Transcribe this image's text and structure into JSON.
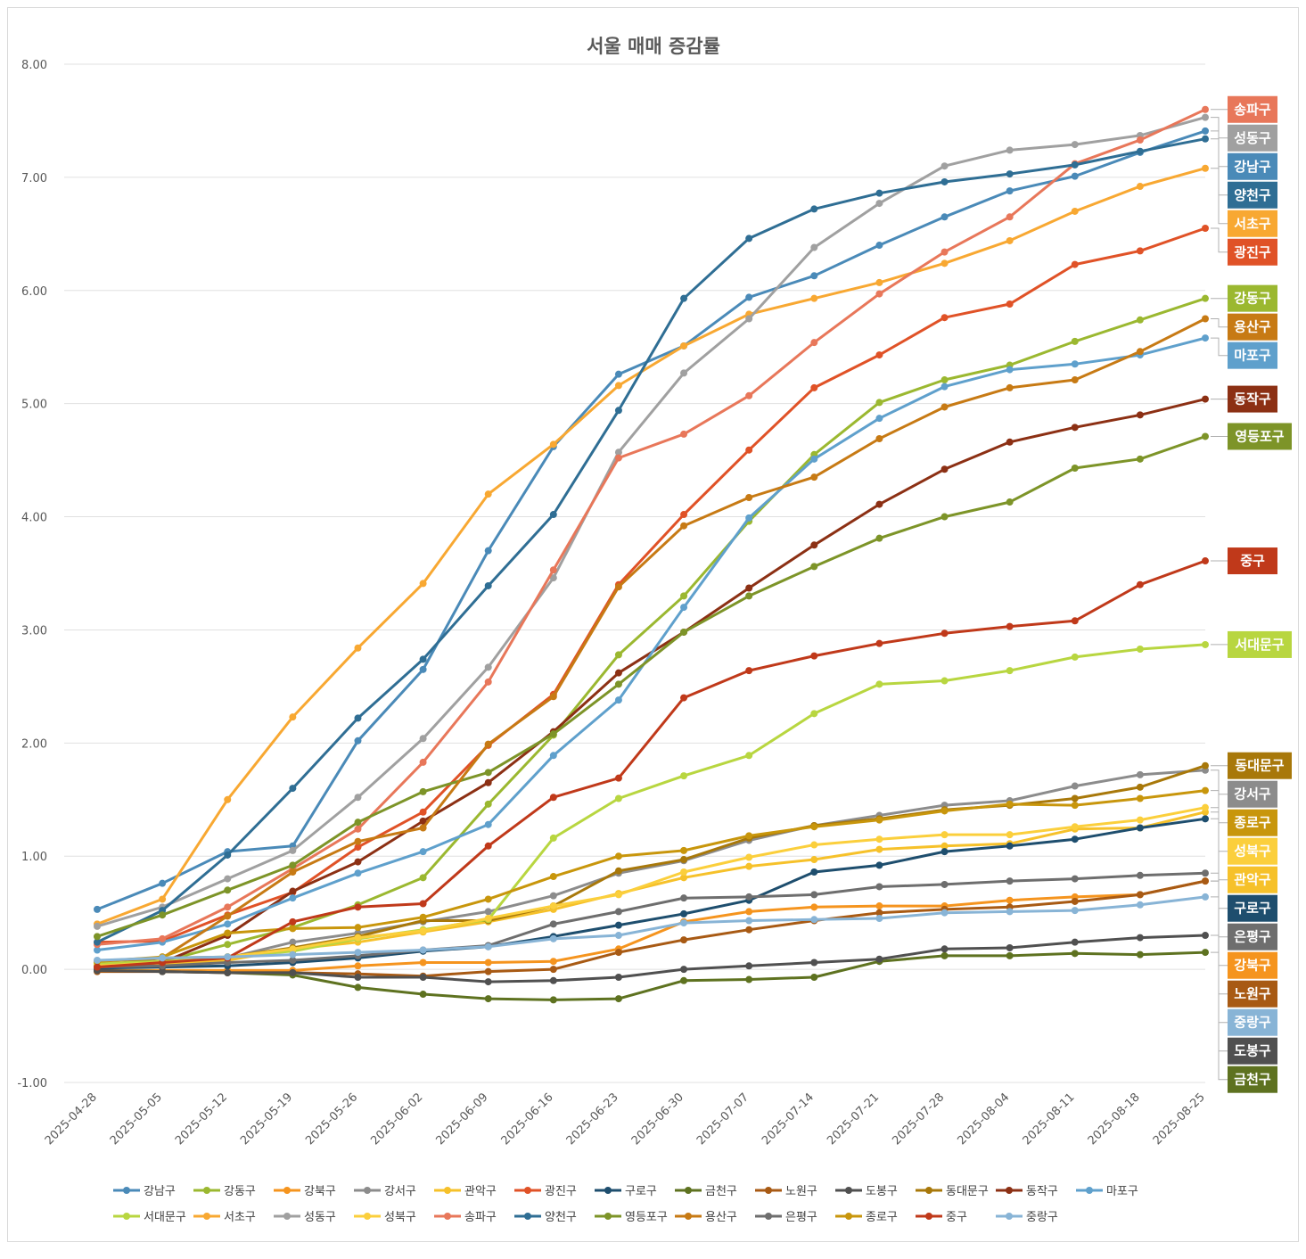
{
  "chart_data": {
    "type": "line",
    "title": "서울 매매 증감률",
    "xlabel": "",
    "ylabel": "",
    "ylim": [
      -1,
      8
    ],
    "ytick_labels": [
      "-1.00",
      "0.00",
      "1.00",
      "2.00",
      "3.00",
      "4.00",
      "5.00",
      "6.00",
      "7.00",
      "8.00"
    ],
    "grid": true,
    "legend_position": "bottom",
    "x": [
      "2025-04-28",
      "2025-05-05",
      "2025-05-12",
      "2025-05-19",
      "2025-05-26",
      "2025-06-02",
      "2025-06-09",
      "2025-06-16",
      "2025-06-23",
      "2025-06-30",
      "2025-07-07",
      "2025-07-14",
      "2025-07-21",
      "2025-07-28",
      "2025-08-04",
      "2025-08-11",
      "2025-08-18",
      "2025-08-25"
    ],
    "series": [
      {
        "name": "강남구",
        "color": "#4a8ab8",
        "values": [
          0.53,
          0.76,
          1.04,
          1.09,
          2.02,
          2.65,
          3.7,
          4.62,
          5.26,
          5.51,
          5.94,
          6.13,
          6.4,
          6.65,
          6.88,
          7.01,
          7.22,
          7.41
        ]
      },
      {
        "name": "강동구",
        "color": "#9bb830",
        "values": [
          0.03,
          0.07,
          0.22,
          0.37,
          0.57,
          0.81,
          1.46,
          2.07,
          2.78,
          3.3,
          3.96,
          4.55,
          5.01,
          5.21,
          5.34,
          5.55,
          5.74,
          5.93
        ]
      },
      {
        "name": "강북구",
        "color": "#f5941e",
        "values": [
          -0.01,
          -0.01,
          -0.01,
          -0.01,
          0.03,
          0.06,
          0.06,
          0.07,
          0.18,
          0.42,
          0.51,
          0.55,
          0.56,
          0.56,
          0.61,
          0.64,
          0.66,
          0.78
        ]
      },
      {
        "name": "강서구",
        "color": "#8c8c8c",
        "values": [
          0.02,
          0.05,
          0.1,
          0.24,
          0.32,
          0.42,
          0.51,
          0.65,
          0.85,
          0.96,
          1.14,
          1.27,
          1.36,
          1.45,
          1.49,
          1.62,
          1.72,
          1.76
        ]
      },
      {
        "name": "관악구",
        "color": "#f6c12a",
        "values": [
          0.02,
          0.05,
          0.08,
          0.18,
          0.24,
          0.33,
          0.42,
          0.53,
          0.67,
          0.81,
          0.91,
          0.97,
          1.06,
          1.09,
          1.11,
          1.24,
          1.25,
          1.39
        ]
      },
      {
        "name": "광진구",
        "color": "#e05227",
        "values": [
          0.24,
          0.25,
          0.48,
          0.68,
          1.08,
          1.39,
          1.98,
          2.43,
          3.4,
          4.02,
          4.59,
          5.14,
          5.43,
          5.76,
          5.88,
          6.23,
          6.35,
          6.55
        ]
      },
      {
        "name": "구로구",
        "color": "#1e4e6e",
        "values": [
          0.01,
          0.02,
          0.03,
          0.06,
          0.1,
          0.16,
          0.2,
          0.29,
          0.39,
          0.49,
          0.61,
          0.86,
          0.92,
          1.04,
          1.09,
          1.15,
          1.25,
          1.33
        ]
      },
      {
        "name": "금천구",
        "color": "#5e7220",
        "values": [
          -0.01,
          -0.02,
          -0.03,
          -0.05,
          -0.16,
          -0.22,
          -0.26,
          -0.27,
          -0.26,
          -0.1,
          -0.09,
          -0.07,
          0.07,
          0.12,
          0.12,
          0.14,
          0.13,
          0.15
        ]
      },
      {
        "name": "노원구",
        "color": "#a85a14",
        "values": [
          -0.02,
          -0.02,
          -0.03,
          -0.03,
          -0.04,
          -0.06,
          -0.02,
          0.0,
          0.15,
          0.26,
          0.35,
          0.43,
          0.5,
          0.53,
          0.55,
          0.6,
          0.66,
          0.78
        ]
      },
      {
        "name": "도봉구",
        "color": "#505050",
        "values": [
          -0.01,
          -0.02,
          -0.03,
          -0.03,
          -0.07,
          -0.07,
          -0.11,
          -0.1,
          -0.07,
          0.0,
          0.03,
          0.06,
          0.09,
          0.18,
          0.19,
          0.24,
          0.28,
          0.3
        ]
      },
      {
        "name": "동대문구",
        "color": "#a8780a",
        "values": [
          0.03,
          0.1,
          0.11,
          0.19,
          0.29,
          0.43,
          0.43,
          0.56,
          0.87,
          0.97,
          1.16,
          1.27,
          1.33,
          1.41,
          1.45,
          1.51,
          1.61,
          1.8
        ]
      },
      {
        "name": "동작구",
        "color": "#8c3014",
        "values": [
          0.02,
          0.06,
          0.3,
          0.69,
          0.95,
          1.31,
          1.65,
          2.1,
          2.62,
          2.98,
          3.37,
          3.75,
          4.11,
          4.42,
          4.66,
          4.79,
          4.9,
          5.04
        ]
      },
      {
        "name": "마포구",
        "color": "#5fa0cc",
        "values": [
          0.17,
          0.24,
          0.4,
          0.63,
          0.85,
          1.04,
          1.28,
          1.89,
          2.38,
          3.2,
          3.99,
          4.51,
          4.87,
          5.15,
          5.3,
          5.35,
          5.43,
          5.58
        ]
      },
      {
        "name": "서대문구",
        "color": "#b8d640",
        "values": [
          0.05,
          0.07,
          0.11,
          0.16,
          0.27,
          0.35,
          0.44,
          1.16,
          1.51,
          1.71,
          1.89,
          2.26,
          2.52,
          2.55,
          2.64,
          2.76,
          2.83,
          2.87
        ]
      },
      {
        "name": "서초구",
        "color": "#f8a832",
        "values": [
          0.4,
          0.62,
          1.5,
          2.23,
          2.84,
          3.41,
          4.2,
          4.64,
          5.16,
          5.51,
          5.79,
          5.93,
          6.07,
          6.24,
          6.44,
          6.7,
          6.92,
          7.08
        ]
      },
      {
        "name": "성동구",
        "color": "#a0a0a0",
        "values": [
          0.38,
          0.55,
          0.8,
          1.05,
          1.52,
          2.04,
          2.67,
          3.46,
          4.57,
          5.27,
          5.75,
          6.38,
          6.77,
          7.1,
          7.24,
          7.29,
          7.37,
          7.53
        ]
      },
      {
        "name": "성북구",
        "color": "#fbcf3c",
        "values": [
          0.03,
          0.06,
          0.11,
          0.18,
          0.28,
          0.34,
          0.45,
          0.56,
          0.66,
          0.86,
          0.99,
          1.1,
          1.15,
          1.19,
          1.19,
          1.26,
          1.32,
          1.43
        ]
      },
      {
        "name": "송파구",
        "color": "#e8775a",
        "values": [
          0.22,
          0.27,
          0.55,
          0.89,
          1.24,
          1.83,
          2.54,
          3.53,
          4.52,
          4.73,
          5.07,
          5.54,
          5.97,
          6.34,
          6.65,
          7.12,
          7.33,
          7.6
        ]
      },
      {
        "name": "양천구",
        "color": "#2f6e94",
        "values": [
          0.24,
          0.52,
          1.01,
          1.6,
          2.22,
          2.74,
          3.39,
          4.02,
          4.94,
          5.93,
          6.46,
          6.72,
          6.86,
          6.96,
          7.03,
          7.11,
          7.23,
          7.34
        ]
      },
      {
        "name": "영등포구",
        "color": "#7d9428",
        "values": [
          0.29,
          0.48,
          0.7,
          0.92,
          1.3,
          1.57,
          1.74,
          2.08,
          2.52,
          2.98,
          3.3,
          3.56,
          3.81,
          4.0,
          4.13,
          4.43,
          4.51,
          4.71
        ]
      },
      {
        "name": "용산구",
        "color": "#c77a14",
        "values": [
          0.07,
          0.1,
          0.47,
          0.86,
          1.13,
          1.25,
          1.99,
          2.41,
          3.38,
          3.92,
          4.17,
          4.35,
          4.69,
          4.97,
          5.14,
          5.21,
          5.46,
          5.75
        ]
      },
      {
        "name": "은평구",
        "color": "#6e6e6e",
        "values": [
          0.02,
          0.03,
          0.06,
          0.08,
          0.12,
          0.17,
          0.21,
          0.4,
          0.51,
          0.63,
          0.64,
          0.66,
          0.73,
          0.75,
          0.78,
          0.8,
          0.83,
          0.85
        ]
      },
      {
        "name": "종로구",
        "color": "#c8960c",
        "values": [
          0.07,
          0.11,
          0.32,
          0.36,
          0.37,
          0.46,
          0.62,
          0.82,
          1.0,
          1.05,
          1.18,
          1.26,
          1.32,
          1.4,
          1.46,
          1.45,
          1.51,
          1.58
        ]
      },
      {
        "name": "중구",
        "color": "#c0391a",
        "values": [
          0.02,
          0.06,
          0.1,
          0.42,
          0.55,
          0.58,
          1.09,
          1.52,
          1.69,
          2.4,
          2.64,
          2.77,
          2.88,
          2.97,
          3.03,
          3.08,
          3.4,
          3.61
        ]
      },
      {
        "name": "중랑구",
        "color": "#88b4d6",
        "values": [
          0.08,
          0.1,
          0.11,
          0.13,
          0.15,
          0.17,
          0.2,
          0.27,
          0.3,
          0.41,
          0.43,
          0.44,
          0.45,
          0.5,
          0.51,
          0.52,
          0.57,
          0.64
        ]
      }
    ],
    "end_labels": [
      {
        "name": "송파구",
        "series": "송파구",
        "bg": "#e8775a",
        "fg": "#ffffff"
      },
      {
        "name": "성동구",
        "series": "성동구",
        "bg": "#a0a0a0",
        "fg": "#ffffff"
      },
      {
        "name": "강남구",
        "series": "강남구",
        "bg": "#4a8ab8",
        "fg": "#ffffff"
      },
      {
        "name": "양천구",
        "series": "양천구",
        "bg": "#2f6e94",
        "fg": "#ffffff"
      },
      {
        "name": "서초구",
        "series": "서초구",
        "bg": "#f8a832",
        "fg": "#ffffff"
      },
      {
        "name": "광진구",
        "series": "광진구",
        "bg": "#e05227",
        "fg": "#ffffff"
      },
      {
        "name": "강동구",
        "series": "강동구",
        "bg": "#9bb830",
        "fg": "#ffffff"
      },
      {
        "name": "용산구",
        "series": "용산구",
        "bg": "#c77a14",
        "fg": "#ffffff"
      },
      {
        "name": "마포구",
        "series": "마포구",
        "bg": "#5fa0cc",
        "fg": "#ffffff"
      },
      {
        "name": "동작구",
        "series": "동작구",
        "bg": "#8c3014",
        "fg": "#ffffff"
      },
      {
        "name": "영등포구",
        "series": "영등포구",
        "bg": "#7d9428",
        "fg": "#ffffff"
      },
      {
        "name": "중구",
        "series": "중구",
        "bg": "#c0391a",
        "fg": "#ffffff"
      },
      {
        "name": "서대문구",
        "series": "서대문구",
        "bg": "#b8d640",
        "fg": "#ffffff"
      },
      {
        "name": "동대문구",
        "series": "동대문구",
        "bg": "#a8780a",
        "fg": "#ffffff"
      },
      {
        "name": "강서구",
        "series": "강서구",
        "bg": "#8c8c8c",
        "fg": "#ffffff"
      },
      {
        "name": "종로구",
        "series": "종로구",
        "bg": "#c8960c",
        "fg": "#ffffff"
      },
      {
        "name": "성북구",
        "series": "성북구",
        "bg": "#fbcf3c",
        "fg": "#ffffff"
      },
      {
        "name": "관악구",
        "series": "관악구",
        "bg": "#f6c12a",
        "fg": "#ffffff"
      },
      {
        "name": "구로구",
        "series": "구로구",
        "bg": "#1e4e6e",
        "fg": "#ffffff"
      },
      {
        "name": "은평구",
        "series": "은평구",
        "bg": "#6e6e6e",
        "fg": "#ffffff"
      },
      {
        "name": "강북구",
        "series": "강북구",
        "bg": "#f5941e",
        "fg": "#ffffff"
      },
      {
        "name": "노원구",
        "series": "노원구",
        "bg": "#a85a14",
        "fg": "#ffffff"
      },
      {
        "name": "중랑구",
        "series": "중랑구",
        "bg": "#88b4d6",
        "fg": "#ffffff"
      },
      {
        "name": "도봉구",
        "series": "도봉구",
        "bg": "#505050",
        "fg": "#ffffff"
      },
      {
        "name": "금천구",
        "series": "금천구",
        "bg": "#5e7220",
        "fg": "#ffffff"
      }
    ]
  }
}
